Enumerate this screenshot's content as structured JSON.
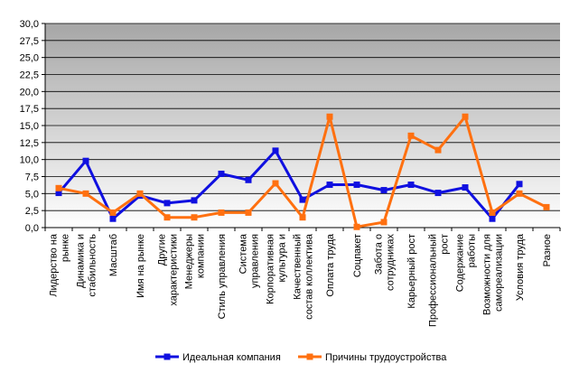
{
  "chart_data": {
    "type": "line",
    "title": "",
    "xlabel": "",
    "ylabel": "",
    "ylim": [
      0,
      30
    ],
    "yticks": [
      "0,0",
      "2,5",
      "5,0",
      "7,5",
      "10,0",
      "12,5",
      "15,0",
      "17,5",
      "20,0",
      "22,5",
      "25,0",
      "27,5",
      "30,0"
    ],
    "grid": true,
    "legend_position": "bottom",
    "categories": [
      [
        "Лидерство на",
        "рынке"
      ],
      [
        "Динамика и",
        "стабильность"
      ],
      [
        "Масштаб"
      ],
      [
        "Имя на рынке"
      ],
      [
        "Другие",
        "характеристики"
      ],
      [
        "Менеджеры",
        "компании"
      ],
      [
        "Стиль управления"
      ],
      [
        "Система",
        "управления"
      ],
      [
        "Корпоративная",
        "культура и"
      ],
      [
        "Качественный",
        "состав коллектива"
      ],
      [
        "Оплата труда"
      ],
      [
        "Соцпакет"
      ],
      [
        "Забота о",
        "сотрудниках"
      ],
      [
        "Карьерный рост"
      ],
      [
        "Профессиональный",
        "рост"
      ],
      [
        "Содержание",
        "работы"
      ],
      [
        "Возможности для",
        "самореализации"
      ],
      [
        "Условия труда"
      ],
      [
        "Разное"
      ]
    ],
    "series": [
      {
        "name": "Идеальная компания",
        "color": "#1010e0",
        "marker": "square",
        "values": [
          5.1,
          9.8,
          1.3,
          4.7,
          3.6,
          4.0,
          7.9,
          7.0,
          11.3,
          4.1,
          6.3,
          6.3,
          5.5,
          6.3,
          5.1,
          5.9,
          1.3,
          6.4,
          null
        ]
      },
      {
        "name": "Причины трудоустройства",
        "color": "#ff7010",
        "marker": "square",
        "values": [
          5.8,
          5.0,
          2.2,
          5.0,
          1.5,
          1.5,
          2.2,
          2.2,
          6.5,
          1.5,
          16.3,
          0.1,
          0.8,
          13.5,
          11.4,
          16.3,
          2.2,
          5.0,
          3.0
        ]
      }
    ]
  }
}
